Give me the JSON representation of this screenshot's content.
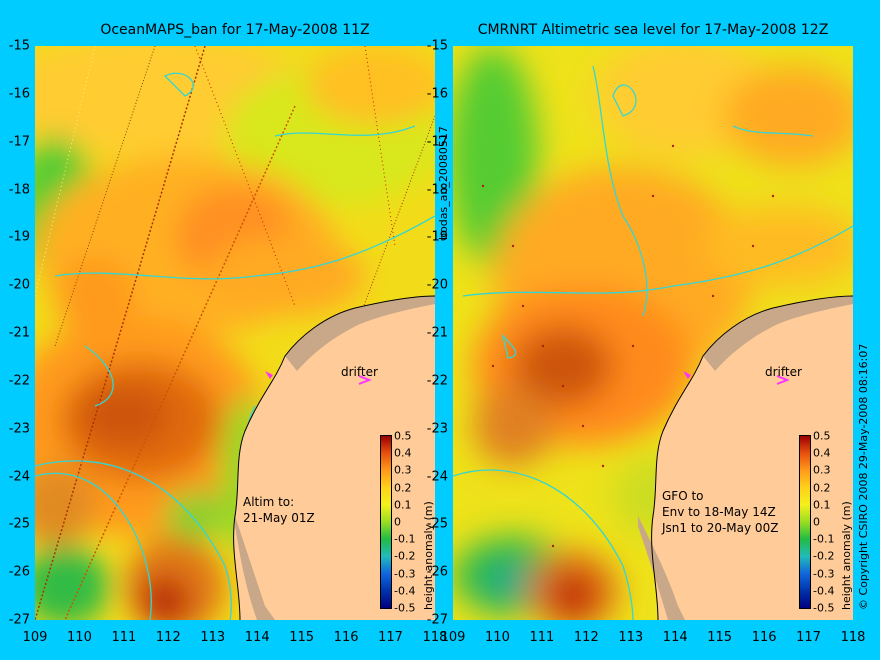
{
  "left_panel": {
    "title": "OceanMAPS_ban for 17-May-2008 11Z",
    "drifter_label": "drifter",
    "altim_note": "Altim to:\n21-May 01Z"
  },
  "right_panel": {
    "title": "CMRNRT Altimetric sea level  for 17-May-2008 12Z",
    "drifter_label": "drifter",
    "gfo_note": "GFO to\nEnv to 18-May 14Z\nJsn1 to 20-May 00Z"
  },
  "axes": {
    "lat_labels": [
      "-15",
      "-16",
      "-17",
      "-18",
      "-19",
      "-20",
      "-21",
      "-22",
      "-23",
      "-24",
      "-25",
      "-26",
      "-27"
    ],
    "lon_labels": [
      "109",
      "110",
      "111",
      "112",
      "113",
      "114",
      "115",
      "116",
      "117",
      "118"
    ],
    "lon_labels_right": [
      "109",
      "110",
      "111",
      "112",
      "113",
      "114",
      "115",
      "116",
      "117",
      "118"
    ]
  },
  "colorbar": {
    "ticks": [
      "0.5",
      "0.4",
      "0.3",
      "0.2",
      "0.1",
      "0",
      "-0.1",
      "-0.2",
      "-0.3",
      "-0.4",
      "-0.5"
    ],
    "label": "height anomaly (m)"
  },
  "side_labels": {
    "analysis_id": "bodas_an_20080517",
    "copyright": "© Copyright CSIRO 2008   29-May-2008 08:16:07"
  },
  "colors": {
    "background": "#00ccff",
    "land": "#ffcc99",
    "coast_shelf": "#c8a888",
    "contour": "#33d6d6",
    "drifter": "#ff33ff"
  }
}
